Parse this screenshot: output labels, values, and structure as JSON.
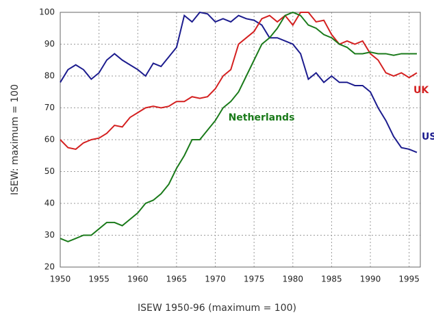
{
  "chart_data": {
    "type": "line",
    "xlabel": "ISEW 1950-96 (maximum = 100)",
    "ylabel": "ISEW: maximum = 100",
    "x": [
      1950,
      1951,
      1952,
      1953,
      1954,
      1955,
      1956,
      1957,
      1958,
      1959,
      1960,
      1961,
      1962,
      1963,
      1964,
      1965,
      1966,
      1967,
      1968,
      1969,
      1970,
      1971,
      1972,
      1973,
      1974,
      1975,
      1976,
      1977,
      1978,
      1979,
      1980,
      1981,
      1982,
      1983,
      1984,
      1985,
      1986,
      1987,
      1988,
      1989,
      1990,
      1991,
      1992,
      1993,
      1994,
      1995,
      1996
    ],
    "series": [
      {
        "name": "USA",
        "color": "#1c1c8e",
        "values": [
          78,
          82,
          83.5,
          82,
          79,
          81,
          85,
          87,
          85,
          83.5,
          82,
          80,
          84,
          83,
          86,
          89,
          99,
          97,
          100,
          99.5,
          97,
          98,
          97,
          99,
          98,
          97.5,
          96,
          92,
          92,
          91,
          90,
          87,
          79,
          81,
          78,
          80,
          78,
          78,
          77,
          77,
          75,
          70,
          66,
          61,
          57.5,
          57,
          56
        ]
      },
      {
        "name": "UK",
        "color": "#d42020",
        "values": [
          60,
          57.5,
          57,
          59,
          60,
          60.5,
          62,
          64.5,
          64,
          67,
          68.5,
          70,
          70.5,
          70,
          70.5,
          72,
          72,
          73.5,
          73,
          73.5,
          76,
          80,
          82,
          90,
          92,
          94,
          98,
          99,
          97,
          99,
          96,
          100,
          100,
          97,
          97.5,
          93,
          90,
          91,
          90,
          91,
          87,
          85,
          81,
          80,
          81,
          79.5,
          81
        ]
      },
      {
        "name": "Netherlands",
        "color": "#1a7a1a",
        "values": [
          29,
          28,
          29,
          30,
          30,
          32,
          34,
          34,
          33,
          35,
          37,
          40,
          41,
          43,
          46,
          51,
          55,
          60,
          60,
          63,
          66,
          70,
          72,
          75,
          80,
          85,
          90,
          92,
          95,
          99,
          100,
          99,
          96,
          95,
          93,
          92,
          90,
          89,
          87,
          87,
          87.5,
          87,
          87,
          86.5,
          87,
          87,
          87
        ]
      }
    ],
    "xlim": [
      1950,
      1996
    ],
    "ylim": [
      20,
      100
    ],
    "xticks": [
      1950,
      1955,
      1960,
      1965,
      1970,
      1975,
      1980,
      1985,
      1990,
      1995
    ],
    "yticks": [
      20,
      30,
      40,
      50,
      60,
      70,
      80,
      90,
      100
    ],
    "grid": true
  }
}
